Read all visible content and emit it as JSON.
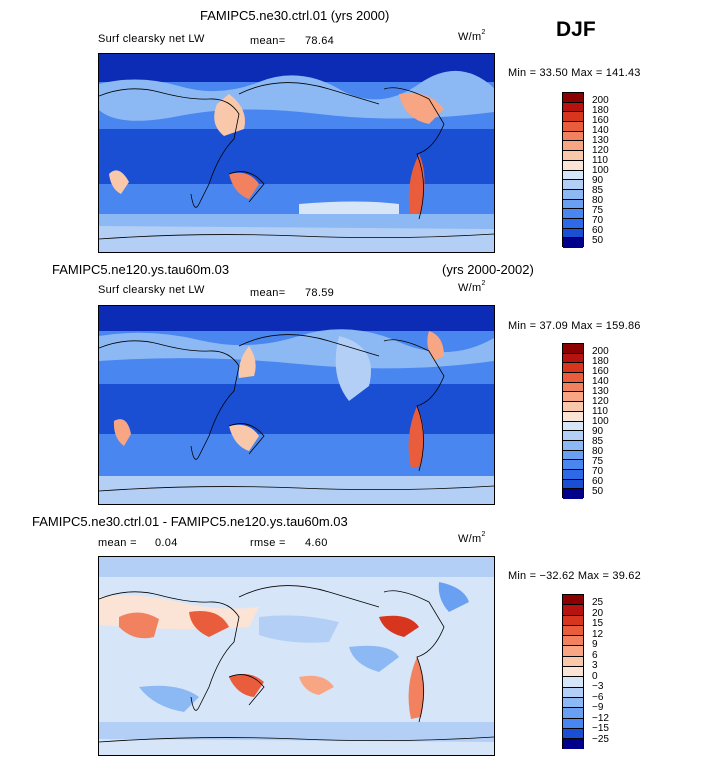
{
  "season": "DJF",
  "colors": {
    "abs": [
      "#00008b",
      "#0d2cb5",
      "#1a4fd4",
      "#2e6ae8",
      "#4a86f0",
      "#6aa0f2",
      "#8cb8f4",
      "#b3cff6",
      "#d6e6f8",
      "#fbe4d6",
      "#f9c8aa",
      "#f7a583",
      "#f2825f",
      "#ea5d3c",
      "#d8351f",
      "#b51210",
      "#8b0000"
    ],
    "diff": [
      "#00008b",
      "#0d2cb5",
      "#1a4fd4",
      "#2e6ae8",
      "#4a86f0",
      "#6aa0f2",
      "#8cb8f4",
      "#b3cff6",
      "#d6e6f8",
      "#fbe4d6",
      "#f9c8aa",
      "#f7a583",
      "#f2825f",
      "#ea5d3c",
      "#d8351f",
      "#b51210",
      "#8b0000"
    ]
  },
  "panels": [
    {
      "title": "FAMIPC5.ne30.ctrl.01 (yrs 2000)",
      "variable": "Surf clearsky net LW",
      "mean_label": "mean=",
      "mean_value": "78.64",
      "units": "W/m",
      "units_exp": "2",
      "minmax": "Min =  33.50  Max = 141.43",
      "colorbar_labels": [
        "200",
        "180",
        "160",
        "140",
        "130",
        "120",
        "110",
        "100",
        "90",
        "85",
        "80",
        "75",
        "70",
        "60",
        "50"
      ]
    },
    {
      "title_left": "FAMIPC5.ne120.ys.tau60m.03",
      "title_right": "(yrs 2000-2002)",
      "variable": "Surf clearsky net LW",
      "mean_label": "mean=",
      "mean_value": "78.59",
      "units": "W/m",
      "units_exp": "2",
      "minmax": "Min =  37.09  Max = 159.86",
      "colorbar_labels": [
        "200",
        "180",
        "160",
        "140",
        "130",
        "120",
        "110",
        "100",
        "90",
        "85",
        "80",
        "75",
        "70",
        "60",
        "50"
      ]
    },
    {
      "title": "FAMIPC5.ne30.ctrl.01 - FAMIPC5.ne120.ys.tau60m.03",
      "mean_label": "mean =",
      "mean_value": "0.04",
      "rmse_label": "rmse =",
      "rmse_value": "4.60",
      "units": "W/m",
      "units_exp": "2",
      "minmax": "Min = −32.62  Max =  39.62",
      "colorbar_labels": [
        "25",
        "20",
        "15",
        "12",
        "9",
        "6",
        "3",
        "0",
        "−3",
        "−6",
        "−9",
        "−12",
        "−15",
        "−25"
      ]
    }
  ]
}
